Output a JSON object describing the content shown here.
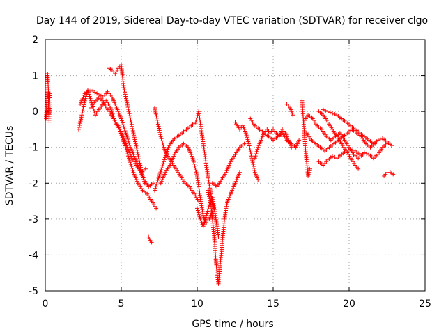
{
  "chart_data": {
    "type": "scatter",
    "title": "Day 144 of 2019, Sidereal Day-to-day VTEC variation (SDTVAR) for receiver clgo",
    "xlabel": "GPS time / hours",
    "ylabel": "SDTVAR / TECUs",
    "xlim": [
      0,
      25
    ],
    "ylim": [
      -5,
      2
    ],
    "xticks": [
      0,
      5,
      10,
      15,
      20,
      25
    ],
    "yticks": [
      -5,
      -4,
      -3,
      -2,
      -1,
      0,
      1,
      2
    ],
    "xtick_labels": [
      "0",
      "5",
      "10",
      "15",
      "20",
      "25"
    ],
    "ytick_labels": [
      "-5",
      "-4",
      "-3",
      "-2",
      "-1",
      "0",
      "1",
      "2"
    ],
    "grid": true,
    "marker": "+",
    "color": "#ff0000",
    "series": [
      {
        "name": "t0",
        "points": [
          [
            0.05,
            -0.2
          ],
          [
            0.1,
            0.3
          ],
          [
            0.12,
            0.9
          ],
          [
            0.15,
            1.05
          ],
          [
            0.2,
            0.6
          ],
          [
            0.22,
            0.1
          ],
          [
            0.25,
            -0.3
          ],
          [
            0.28,
            0.2
          ],
          [
            0.3,
            0.5
          ]
        ]
      },
      {
        "name": "t1",
        "points": [
          [
            2.2,
            -0.5
          ],
          [
            2.4,
            -0.1
          ],
          [
            2.6,
            0.3
          ],
          [
            2.8,
            0.6
          ],
          [
            3.0,
            0.3
          ],
          [
            3.3,
            -0.1
          ],
          [
            3.6,
            0.1
          ],
          [
            4.0,
            0.3
          ],
          [
            4.3,
            0.1
          ],
          [
            4.6,
            -0.3
          ],
          [
            4.9,
            -0.5
          ],
          [
            5.2,
            -0.9
          ],
          [
            5.5,
            -1.3
          ],
          [
            5.8,
            -1.7
          ],
          [
            6.1,
            -2.0
          ],
          [
            6.4,
            -2.2
          ],
          [
            6.7,
            -2.3
          ],
          [
            7.0,
            -2.5
          ],
          [
            7.3,
            -2.7
          ]
        ]
      },
      {
        "name": "t2",
        "points": [
          [
            2.3,
            0.2
          ],
          [
            2.6,
            0.5
          ],
          [
            3.0,
            0.6
          ],
          [
            3.4,
            0.5
          ],
          [
            3.8,
            0.4
          ],
          [
            4.1,
            0.55
          ],
          [
            4.4,
            0.4
          ],
          [
            4.7,
            0.1
          ],
          [
            5.0,
            -0.2
          ],
          [
            5.3,
            -0.6
          ],
          [
            5.6,
            -1.0
          ],
          [
            5.9,
            -1.3
          ],
          [
            6.2,
            -1.6
          ],
          [
            6.5,
            -1.9
          ],
          [
            6.8,
            -2.1
          ],
          [
            7.1,
            -2.0
          ]
        ]
      },
      {
        "name": "t3",
        "points": [
          [
            3.0,
            0.1
          ],
          [
            3.3,
            0.3
          ],
          [
            3.6,
            0.4
          ],
          [
            3.9,
            0.2
          ],
          [
            4.2,
            0.0
          ],
          [
            4.5,
            -0.2
          ],
          [
            4.8,
            -0.4
          ],
          [
            5.1,
            -0.7
          ],
          [
            5.4,
            -1.0
          ],
          [
            5.7,
            -1.3
          ],
          [
            6.0,
            -1.5
          ],
          [
            6.3,
            -1.7
          ],
          [
            6.6,
            -1.6
          ]
        ]
      },
      {
        "name": "t4",
        "points": [
          [
            4.2,
            1.2
          ],
          [
            4.4,
            1.15
          ],
          [
            4.6,
            1.05
          ],
          [
            4.8,
            1.2
          ],
          [
            5.0,
            1.3
          ],
          [
            5.1,
            0.9
          ],
          [
            5.2,
            0.6
          ],
          [
            5.35,
            0.3
          ],
          [
            5.5,
            0.0
          ],
          [
            5.65,
            -0.3
          ],
          [
            5.8,
            -0.6
          ],
          [
            5.95,
            -0.9
          ],
          [
            6.1,
            -1.2
          ],
          [
            6.25,
            -1.5
          ],
          [
            6.4,
            -1.8
          ],
          [
            6.55,
            -2.0
          ]
        ]
      },
      {
        "name": "t5",
        "points": [
          [
            6.8,
            -3.5
          ],
          [
            6.9,
            -3.6
          ],
          [
            7.0,
            -3.65
          ]
        ]
      },
      {
        "name": "t6",
        "points": [
          [
            7.2,
            0.1
          ],
          [
            7.4,
            -0.3
          ],
          [
            7.6,
            -0.7
          ],
          [
            7.8,
            -1.0
          ],
          [
            8.0,
            -1.2
          ],
          [
            8.3,
            -1.4
          ],
          [
            8.6,
            -1.6
          ],
          [
            8.9,
            -1.8
          ],
          [
            9.2,
            -2.0
          ],
          [
            9.5,
            -2.1
          ],
          [
            9.8,
            -2.3
          ],
          [
            10.1,
            -2.5
          ]
        ]
      },
      {
        "name": "t7",
        "points": [
          [
            7.2,
            -2.2
          ],
          [
            7.5,
            -1.8
          ],
          [
            7.8,
            -1.4
          ],
          [
            8.1,
            -1.0
          ],
          [
            8.4,
            -0.8
          ],
          [
            8.7,
            -0.7
          ],
          [
            9.0,
            -0.6
          ],
          [
            9.3,
            -0.5
          ],
          [
            9.6,
            -0.4
          ],
          [
            9.9,
            -0.3
          ],
          [
            10.1,
            0.0
          ],
          [
            10.3,
            -0.6
          ],
          [
            10.5,
            -1.2
          ],
          [
            10.7,
            -1.8
          ],
          [
            10.9,
            -2.3
          ],
          [
            11.1,
            -2.7
          ]
        ]
      },
      {
        "name": "t8",
        "points": [
          [
            7.6,
            -2.0
          ],
          [
            7.9,
            -1.7
          ],
          [
            8.2,
            -1.5
          ],
          [
            8.5,
            -1.2
          ],
          [
            8.8,
            -1.0
          ],
          [
            9.1,
            -0.9
          ],
          [
            9.4,
            -1.0
          ],
          [
            9.7,
            -1.3
          ],
          [
            10.0,
            -1.8
          ],
          [
            10.2,
            -2.4
          ],
          [
            10.4,
            -2.9
          ],
          [
            10.6,
            -3.1
          ],
          [
            10.8,
            -3.0
          ],
          [
            11.0,
            -2.8
          ]
        ]
      },
      {
        "name": "t9",
        "points": [
          [
            10.0,
            -2.7
          ],
          [
            10.2,
            -3.0
          ],
          [
            10.4,
            -3.2
          ],
          [
            10.6,
            -2.9
          ],
          [
            10.8,
            -2.6
          ],
          [
            11.0,
            -2.4
          ],
          [
            11.2,
            -2.9
          ],
          [
            11.4,
            -3.5
          ]
        ]
      },
      {
        "name": "t10",
        "points": [
          [
            10.7,
            -2.2
          ],
          [
            10.9,
            -2.6
          ],
          [
            11.1,
            -3.4
          ],
          [
            11.2,
            -4.0
          ],
          [
            11.3,
            -4.5
          ],
          [
            11.4,
            -4.8
          ],
          [
            11.5,
            -4.3
          ],
          [
            11.6,
            -3.9
          ],
          [
            11.7,
            -3.4
          ],
          [
            11.8,
            -3.0
          ],
          [
            11.9,
            -2.7
          ],
          [
            12.0,
            -2.5
          ],
          [
            12.2,
            -2.3
          ],
          [
            12.4,
            -2.1
          ],
          [
            12.6,
            -1.9
          ],
          [
            12.8,
            -1.7
          ]
        ]
      },
      {
        "name": "t11",
        "points": [
          [
            11.0,
            -2.0
          ],
          [
            11.3,
            -2.1
          ],
          [
            11.6,
            -1.9
          ],
          [
            11.9,
            -1.7
          ],
          [
            12.2,
            -1.4
          ],
          [
            12.5,
            -1.2
          ],
          [
            12.8,
            -1.0
          ],
          [
            13.1,
            -0.9
          ]
        ]
      },
      {
        "name": "t12",
        "points": [
          [
            12.5,
            -0.3
          ],
          [
            12.8,
            -0.5
          ],
          [
            13.0,
            -0.4
          ],
          [
            13.2,
            -0.6
          ],
          [
            13.4,
            -0.9
          ],
          [
            13.6,
            -1.3
          ],
          [
            13.8,
            -1.7
          ],
          [
            14.0,
            -1.9
          ]
        ]
      },
      {
        "name": "t13",
        "points": [
          [
            13.5,
            -0.2
          ],
          [
            13.8,
            -0.4
          ],
          [
            14.1,
            -0.5
          ],
          [
            14.4,
            -0.6
          ],
          [
            14.7,
            -0.7
          ],
          [
            15.0,
            -0.8
          ],
          [
            15.3,
            -0.7
          ],
          [
            15.6,
            -0.6
          ],
          [
            15.9,
            -0.8
          ],
          [
            16.2,
            -0.9
          ],
          [
            16.5,
            -1.0
          ],
          [
            16.7,
            -0.8
          ]
        ]
      },
      {
        "name": "t14",
        "points": [
          [
            13.8,
            -1.3
          ],
          [
            14.0,
            -1.0
          ],
          [
            14.2,
            -0.8
          ],
          [
            14.4,
            -0.6
          ],
          [
            14.6,
            -0.5
          ],
          [
            14.8,
            -0.6
          ],
          [
            15.0,
            -0.5
          ],
          [
            15.2,
            -0.6
          ],
          [
            15.4,
            -0.7
          ],
          [
            15.6,
            -0.5
          ],
          [
            15.8,
            -0.6
          ],
          [
            16.0,
            -0.8
          ],
          [
            16.2,
            -1.0
          ]
        ]
      },
      {
        "name": "t15",
        "points": [
          [
            15.9,
            0.2
          ],
          [
            16.0,
            0.15
          ],
          [
            16.1,
            0.1
          ],
          [
            16.2,
            0.0
          ],
          [
            16.3,
            -0.1
          ]
        ]
      },
      {
        "name": "t16",
        "points": [
          [
            16.9,
            0.3
          ],
          [
            17.0,
            -0.3
          ],
          [
            17.1,
            -0.9
          ],
          [
            17.2,
            -1.4
          ],
          [
            17.3,
            -1.8
          ],
          [
            17.4,
            -1.6
          ]
        ]
      },
      {
        "name": "t17",
        "points": [
          [
            17.0,
            -0.3
          ],
          [
            17.3,
            -0.1
          ],
          [
            17.6,
            -0.2
          ],
          [
            17.9,
            -0.4
          ],
          [
            18.2,
            -0.5
          ],
          [
            18.5,
            -0.7
          ],
          [
            18.8,
            -0.8
          ],
          [
            19.1,
            -0.7
          ],
          [
            19.4,
            -0.6
          ],
          [
            19.7,
            -0.8
          ],
          [
            20.0,
            -1.0
          ],
          [
            20.3,
            -1.2
          ],
          [
            20.6,
            -1.3
          ],
          [
            20.9,
            -1.2
          ]
        ]
      },
      {
        "name": "t18",
        "points": [
          [
            17.2,
            -0.6
          ],
          [
            17.5,
            -0.8
          ],
          [
            17.8,
            -0.9
          ],
          [
            18.1,
            -1.0
          ],
          [
            18.4,
            -1.1
          ],
          [
            18.7,
            -1.0
          ],
          [
            19.0,
            -0.9
          ],
          [
            19.3,
            -0.8
          ],
          [
            19.6,
            -0.7
          ],
          [
            19.9,
            -0.6
          ],
          [
            20.2,
            -0.5
          ],
          [
            20.5,
            -0.6
          ],
          [
            20.8,
            -0.7
          ],
          [
            21.1,
            -0.9
          ],
          [
            21.4,
            -1.0
          ],
          [
            21.7,
            -0.9
          ]
        ]
      },
      {
        "name": "t19",
        "points": [
          [
            18.0,
            0.0
          ],
          [
            18.3,
            -0.1
          ],
          [
            18.6,
            -0.3
          ],
          [
            18.9,
            -0.5
          ],
          [
            19.2,
            -0.7
          ],
          [
            19.5,
            -0.9
          ],
          [
            19.8,
            -1.1
          ],
          [
            20.1,
            -1.3
          ],
          [
            20.4,
            -1.5
          ],
          [
            20.6,
            -1.6
          ]
        ]
      },
      {
        "name": "t20",
        "points": [
          [
            18.3,
            0.05
          ],
          [
            18.6,
            0.0
          ],
          [
            18.9,
            -0.05
          ],
          [
            19.2,
            -0.1
          ],
          [
            19.5,
            -0.2
          ],
          [
            19.8,
            -0.3
          ],
          [
            20.1,
            -0.4
          ],
          [
            20.4,
            -0.5
          ],
          [
            20.7,
            -0.6
          ],
          [
            21.0,
            -0.7
          ],
          [
            21.3,
            -0.8
          ],
          [
            21.6,
            -0.9
          ],
          [
            21.9,
            -0.8
          ],
          [
            22.2,
            -0.75
          ],
          [
            22.5,
            -0.85
          ],
          [
            22.8,
            -0.95
          ]
        ]
      },
      {
        "name": "t21",
        "points": [
          [
            18.0,
            -1.4
          ],
          [
            18.3,
            -1.5
          ],
          [
            18.6,
            -1.35
          ],
          [
            18.9,
            -1.25
          ],
          [
            19.2,
            -1.3
          ],
          [
            19.5,
            -1.2
          ],
          [
            19.8,
            -1.1
          ],
          [
            20.1,
            -1.05
          ],
          [
            20.4,
            -1.1
          ],
          [
            20.7,
            -1.2
          ],
          [
            21.0,
            -1.15
          ],
          [
            21.3,
            -1.2
          ],
          [
            21.6,
            -1.3
          ],
          [
            21.9,
            -1.2
          ],
          [
            22.2,
            -1.0
          ],
          [
            22.5,
            -0.9
          ]
        ]
      },
      {
        "name": "t22",
        "points": [
          [
            22.3,
            -1.8
          ],
          [
            22.5,
            -1.7
          ],
          [
            22.7,
            -1.7
          ],
          [
            22.9,
            -1.75
          ]
        ]
      }
    ]
  }
}
